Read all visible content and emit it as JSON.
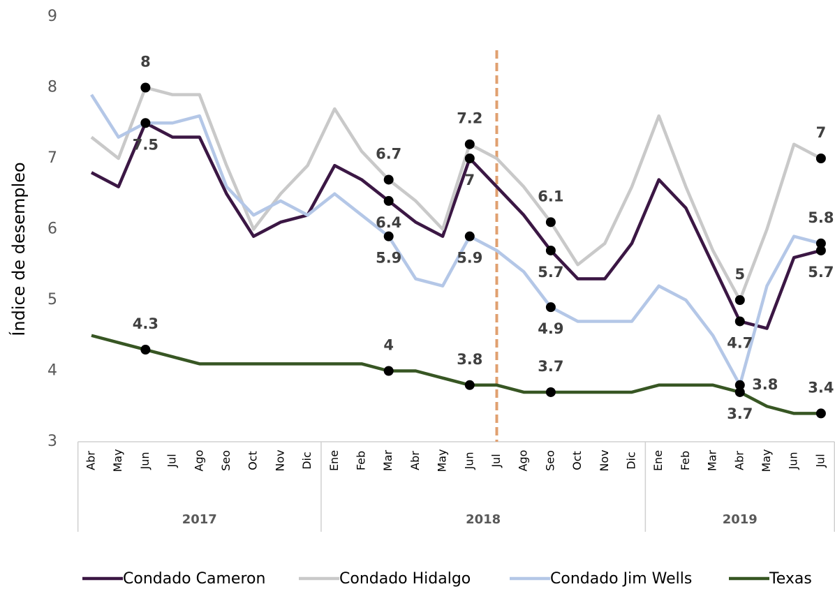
{
  "chart_data": {
    "type": "line",
    "y_label": "Índice de desempleo",
    "categories": [
      "Abr",
      "May",
      "Jun",
      "Jul",
      "Ago",
      "Seo",
      "Oct",
      "Nov",
      "Dic",
      "Ene",
      "Feb",
      "Mar",
      "Abr",
      "May",
      "Jun",
      "Jul",
      "Ago",
      "Seo",
      "Oct",
      "Nov",
      "Dic",
      "Ene",
      "Feb",
      "Mar",
      "Abr",
      "May",
      "Jun",
      "Jul"
    ],
    "year_groups": [
      {
        "label": "2017",
        "from": 0,
        "to": 8
      },
      {
        "label": "2018",
        "from": 9,
        "to": 20
      },
      {
        "label": "2019",
        "from": 21,
        "to": 27
      }
    ],
    "marker_line": {
      "index": 15,
      "color": "#e0a070"
    },
    "ylim": [
      3,
      9
    ],
    "yticks": [
      3,
      4,
      5,
      6,
      7,
      8,
      9
    ],
    "series": [
      {
        "name": "Condado Cameron",
        "color": "#3b1744",
        "values": [
          6.8,
          6.6,
          7.5,
          7.3,
          7.3,
          6.5,
          5.9,
          6.1,
          6.2,
          6.9,
          6.7,
          6.4,
          6.1,
          5.9,
          7.0,
          6.6,
          6.2,
          5.7,
          5.3,
          5.3,
          5.8,
          6.7,
          6.3,
          5.5,
          4.7,
          4.6,
          5.6,
          5.7
        ],
        "labeled_points": [
          {
            "index": 2,
            "position": "below"
          },
          {
            "index": 11,
            "position": "below"
          },
          {
            "index": 14,
            "position": "below"
          },
          {
            "index": 17,
            "position": "below"
          },
          {
            "index": 24,
            "position": "below"
          },
          {
            "index": 27,
            "position": "below"
          }
        ]
      },
      {
        "name": "Condado Hidalgo",
        "color": "#c9c9c9",
        "values": [
          7.3,
          7.0,
          8.0,
          7.9,
          7.9,
          6.9,
          6.0,
          6.5,
          6.9,
          7.7,
          7.1,
          6.7,
          6.4,
          6.0,
          7.2,
          7.0,
          6.6,
          6.1,
          5.5,
          5.8,
          6.6,
          7.6,
          6.6,
          5.7,
          5.0,
          6.0,
          7.2,
          7.0
        ],
        "labeled_points": [
          {
            "index": 2,
            "position": "above"
          },
          {
            "index": 11,
            "position": "above"
          },
          {
            "index": 14,
            "position": "above"
          },
          {
            "index": 17,
            "position": "above"
          },
          {
            "index": 24,
            "position": "above"
          },
          {
            "index": 27,
            "position": "above"
          }
        ]
      },
      {
        "name": "Condado Jim Wells",
        "color": "#b4c7e7",
        "values": [
          7.9,
          7.3,
          7.5,
          7.5,
          7.6,
          6.6,
          6.2,
          6.4,
          6.2,
          6.5,
          6.2,
          5.9,
          5.3,
          5.2,
          5.9,
          5.7,
          5.4,
          4.9,
          4.7,
          4.7,
          4.7,
          5.2,
          5.0,
          4.5,
          3.8,
          5.2,
          5.9,
          5.8
        ],
        "labeled_points": [
          {
            "index": 11,
            "position": "below"
          },
          {
            "index": 14,
            "position": "below"
          },
          {
            "index": 17,
            "position": "below"
          },
          {
            "index": 24,
            "position": "right"
          },
          {
            "index": 27,
            "position": "above"
          }
        ]
      },
      {
        "name": "Texas",
        "color": "#375623",
        "values": [
          4.5,
          4.4,
          4.3,
          4.2,
          4.1,
          4.1,
          4.1,
          4.1,
          4.1,
          4.1,
          4.1,
          4.0,
          4.0,
          3.9,
          3.8,
          3.8,
          3.7,
          3.7,
          3.7,
          3.7,
          3.7,
          3.8,
          3.8,
          3.8,
          3.7,
          3.5,
          3.4,
          3.4
        ],
        "labeled_points": [
          {
            "index": 2,
            "position": "above"
          },
          {
            "index": 11,
            "position": "above"
          },
          {
            "index": 14,
            "position": "above"
          },
          {
            "index": 17,
            "position": "above"
          },
          {
            "index": 24,
            "position": "below"
          },
          {
            "index": 27,
            "position": "above"
          }
        ]
      }
    ]
  }
}
